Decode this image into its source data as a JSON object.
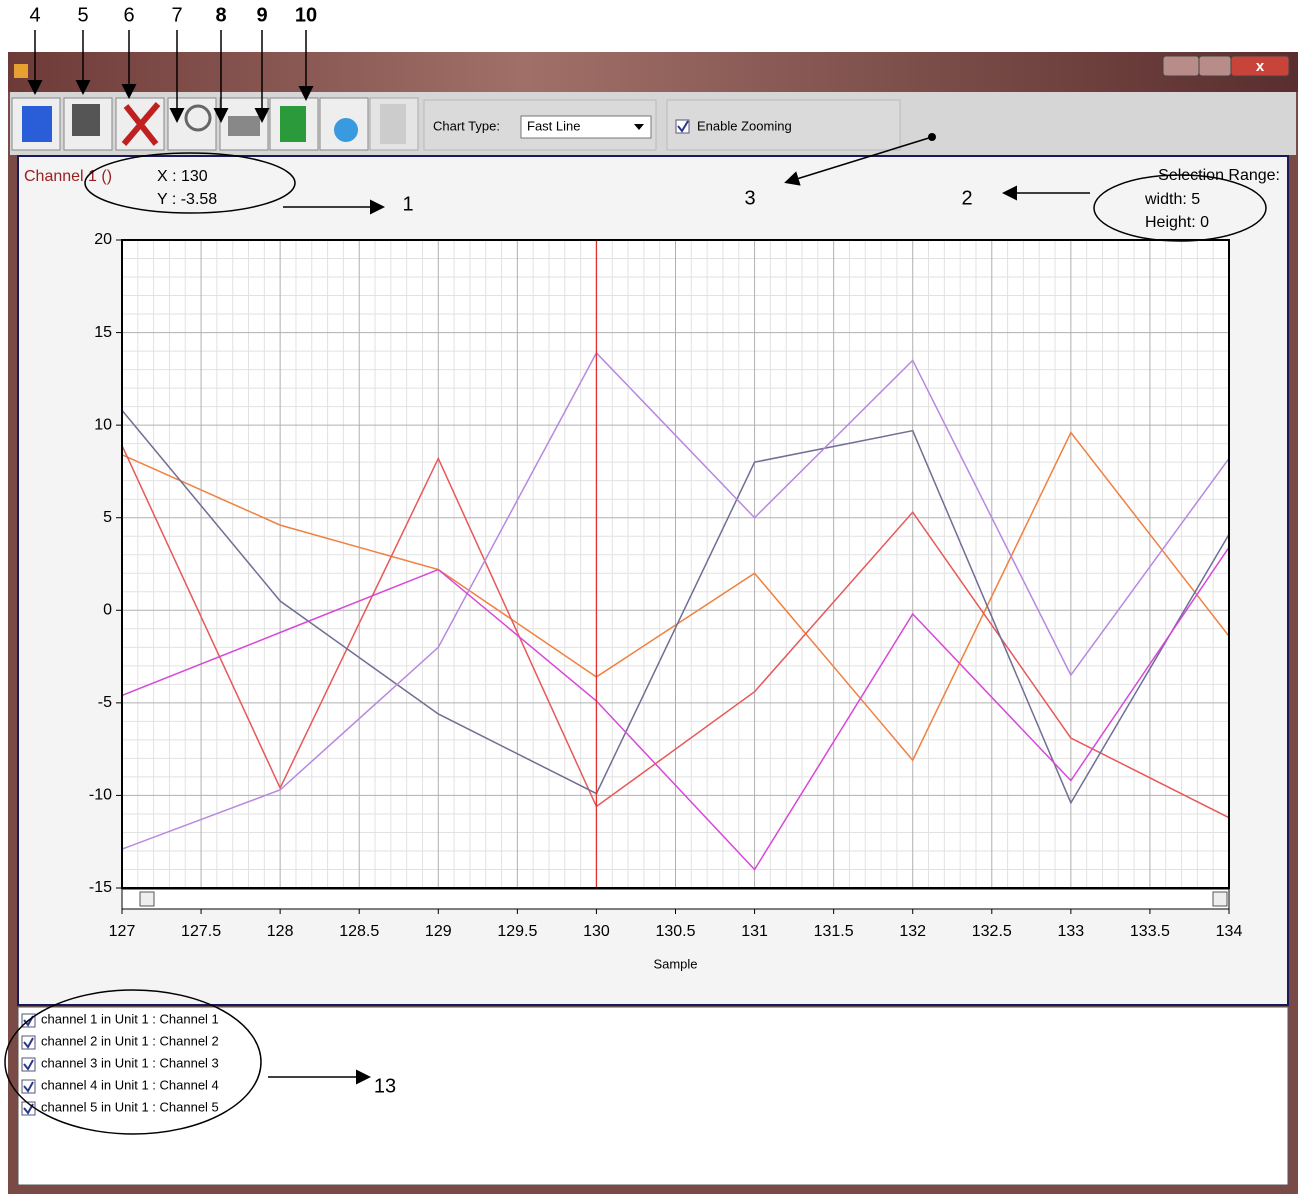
{
  "annotations": [
    "4",
    "5",
    "6",
    "7",
    "8",
    "9",
    "10",
    "1",
    "2",
    "3",
    "13"
  ],
  "toolbar": {
    "chart_type_label": "Chart Type:",
    "chart_type_value": "Fast Line",
    "zoom_label": "Enable Zooming"
  },
  "cursor": {
    "channel": "Channel 1 ()",
    "x": "X : 130",
    "y": "Y : -3.58"
  },
  "selection": {
    "title": "Selection Range:",
    "width": "width: 5",
    "height": "Height: 0"
  },
  "chart_data": {
    "type": "line",
    "xlabel": "Sample",
    "x": [
      127,
      128,
      129,
      130,
      131,
      132,
      133,
      134
    ],
    "xlim": [
      127,
      134
    ],
    "xticks": [
      127,
      127.5,
      128,
      128.5,
      129,
      129.5,
      130,
      130.5,
      131,
      131.5,
      132,
      132.5,
      133,
      133.5,
      134
    ],
    "ylim": [
      -15,
      20
    ],
    "yticks": [
      -15,
      -10,
      -5,
      0,
      5,
      10,
      15,
      20
    ],
    "grid": true,
    "cursor_x": 130,
    "series": [
      {
        "name": "channel 1 in Unit 1 : Channel 1",
        "color": "#f08040",
        "values": [
          8.4,
          4.6,
          2.2,
          -3.6,
          2.0,
          -8.1,
          9.6,
          -1.4
        ]
      },
      {
        "name": "channel 2 in Unit 1 : Channel 2",
        "color": "#e85858",
        "values": [
          8.9,
          -9.6,
          8.2,
          -10.6,
          -4.4,
          5.3,
          -6.9,
          -11.2
        ]
      },
      {
        "name": "channel 3 in Unit 1 : Channel 3",
        "color": "#6e6e96",
        "values": [
          10.8,
          0.5,
          -5.6,
          -9.9,
          8.0,
          9.7,
          -10.4,
          4.1
        ]
      },
      {
        "name": "channel 4 in Unit 1 : Channel 4",
        "color": "#b888e0",
        "values": [
          -12.9,
          -9.7,
          -2.0,
          13.9,
          5.0,
          13.5,
          -3.5,
          8.2
        ]
      },
      {
        "name": "channel 5 in Unit 1 : Channel 5",
        "color": "#d848d8",
        "values": [
          -4.6,
          -1.2,
          2.2,
          -4.9,
          -14.0,
          -0.2,
          -9.2,
          3.4
        ]
      }
    ]
  }
}
